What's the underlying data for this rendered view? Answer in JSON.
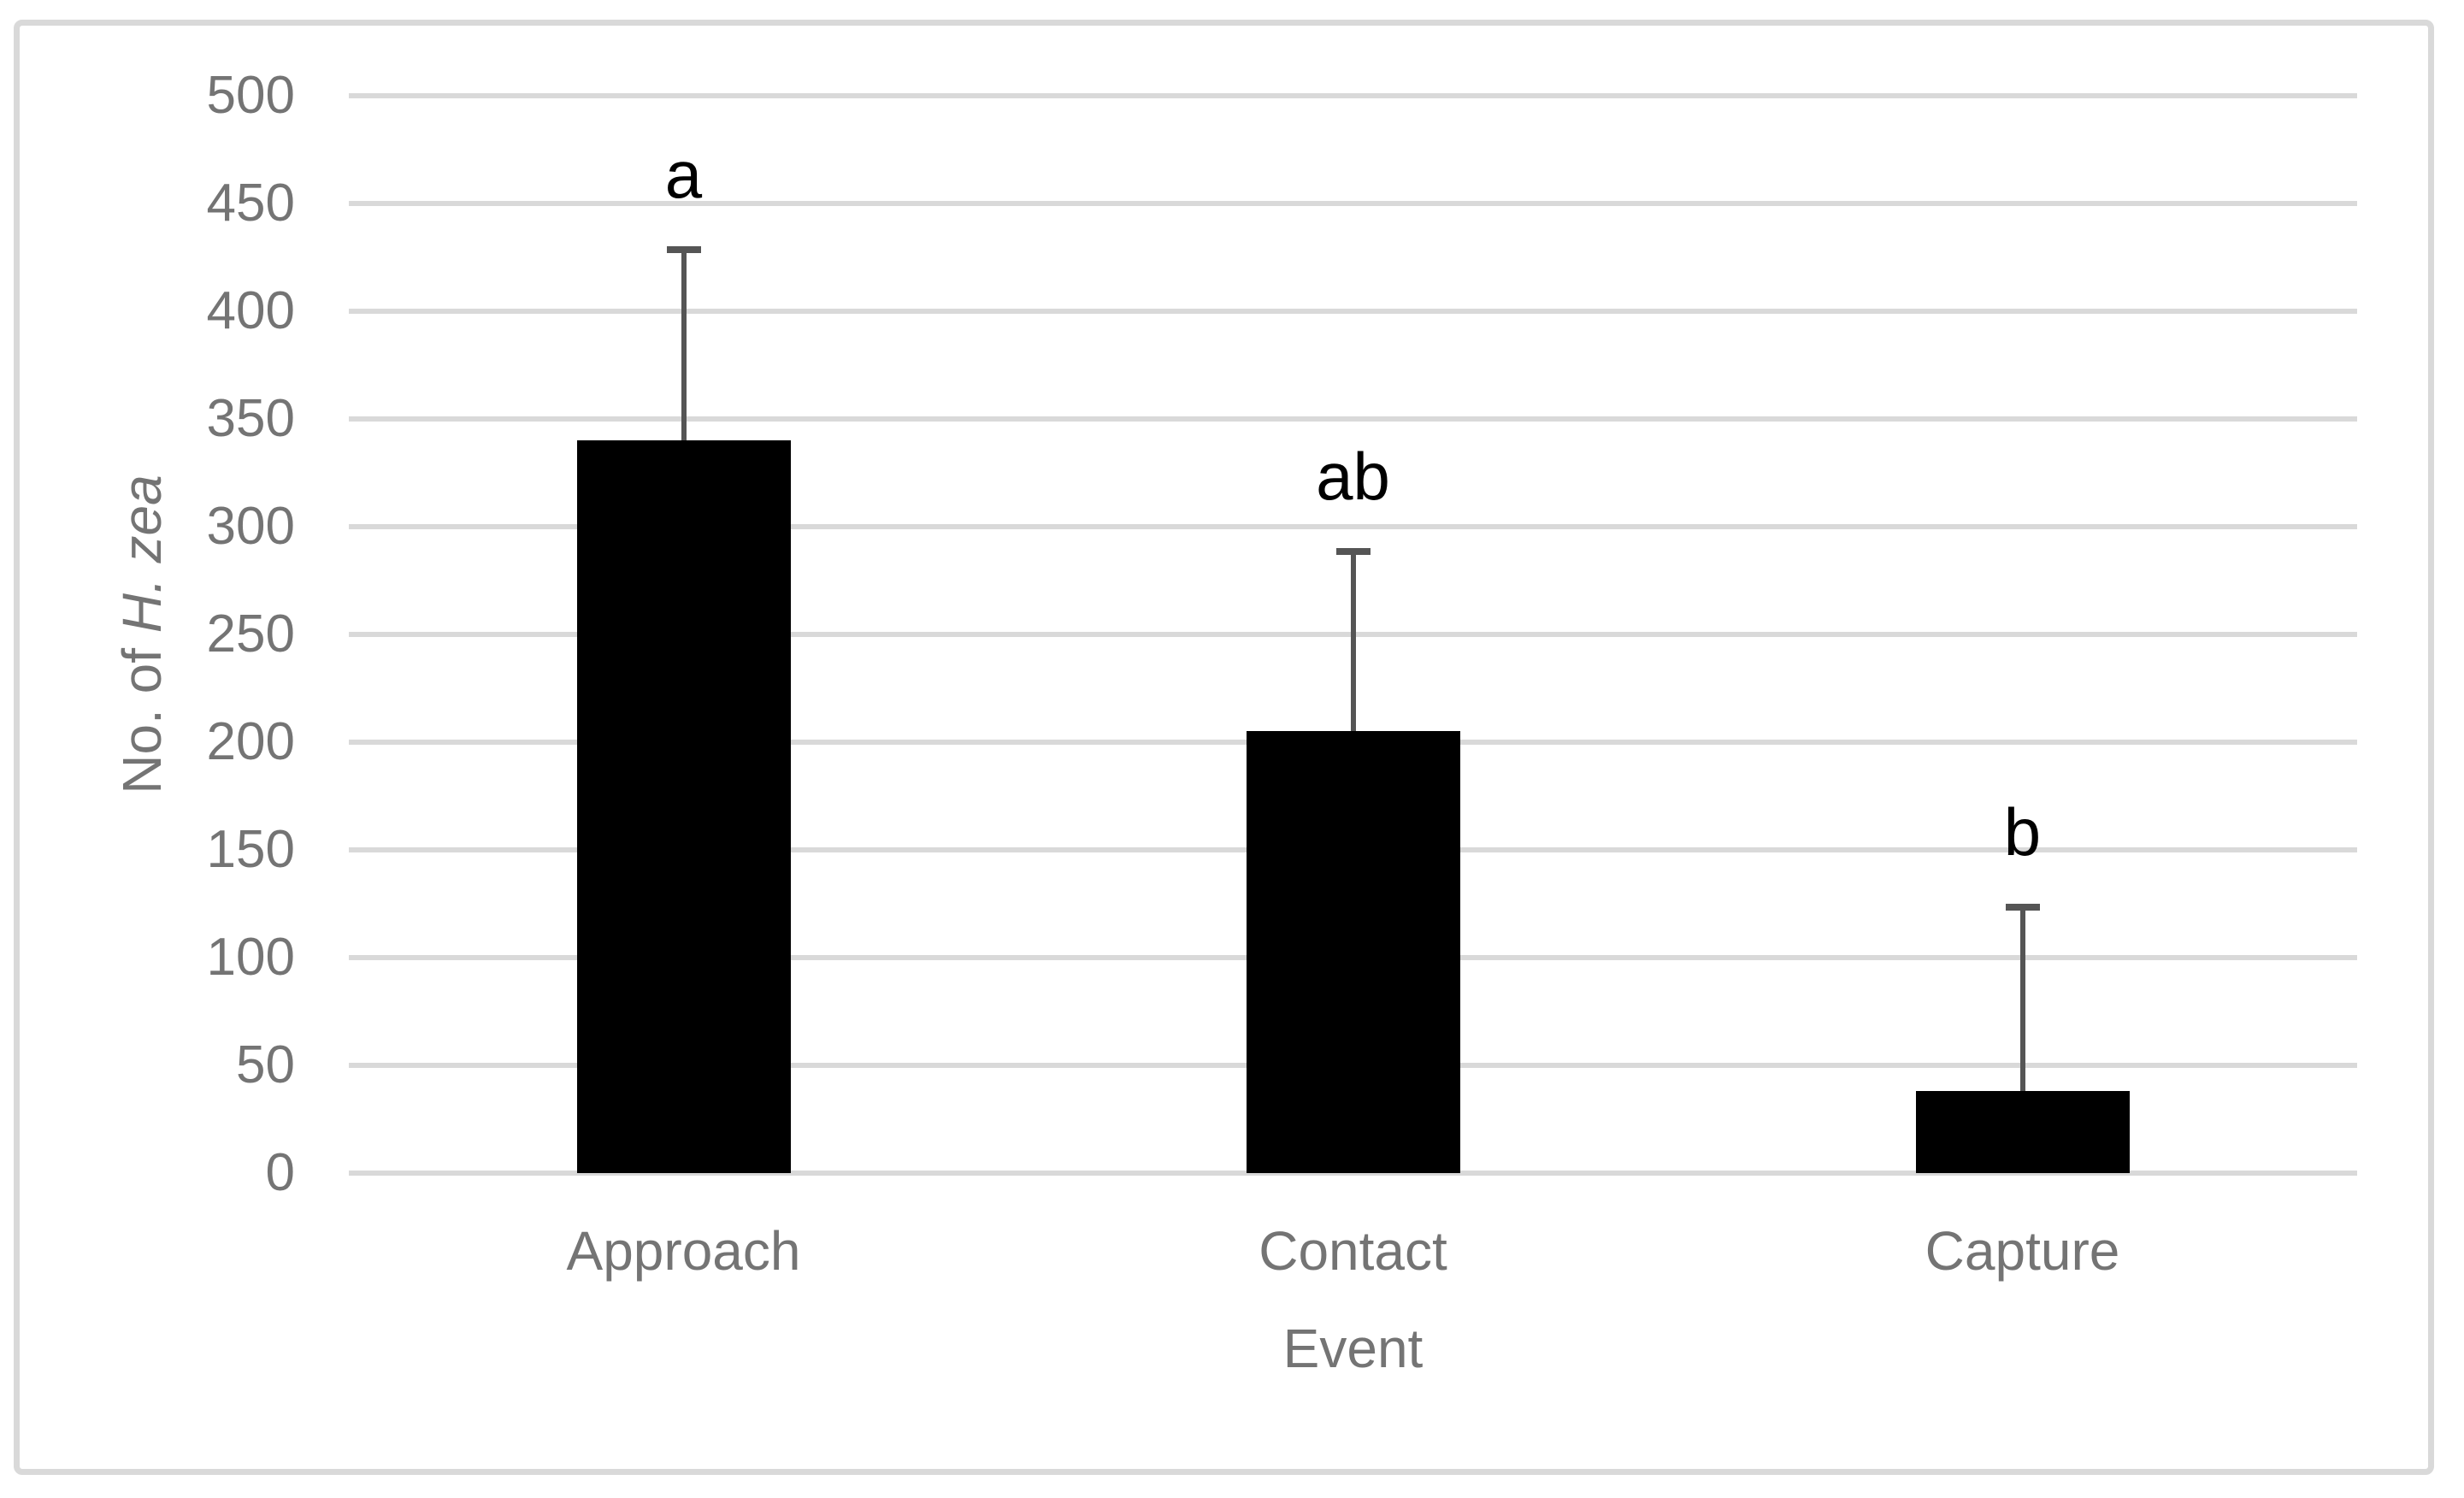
{
  "chart_data": {
    "type": "bar",
    "title": "",
    "categories": [
      "Approach",
      "Contact",
      "Capture"
    ],
    "values": [
      340,
      205,
      38
    ],
    "error_bar_tops": [
      430,
      290,
      125
    ],
    "significance_letters": [
      "a",
      "ab",
      "b"
    ],
    "xlabel": "Event",
    "ylabel": "No. of H. zea",
    "ylabel_plain_part": "No. of ",
    "ylabel_italic_part": "H. zea",
    "ylim": [
      0,
      500
    ],
    "yticks": [
      0,
      50,
      100,
      150,
      200,
      250,
      300,
      350,
      400,
      450,
      500
    ],
    "grid": true,
    "legend_position": "none",
    "colors": {
      "bar": "#000000",
      "error_bar": "#555555",
      "gridline": "#d9d9d9",
      "axis_line": "#d9d9d9",
      "axis_text": "#747474",
      "sig_letter": "#000000",
      "frame_border": "#d9d9d9",
      "background": "#ffffff"
    }
  }
}
